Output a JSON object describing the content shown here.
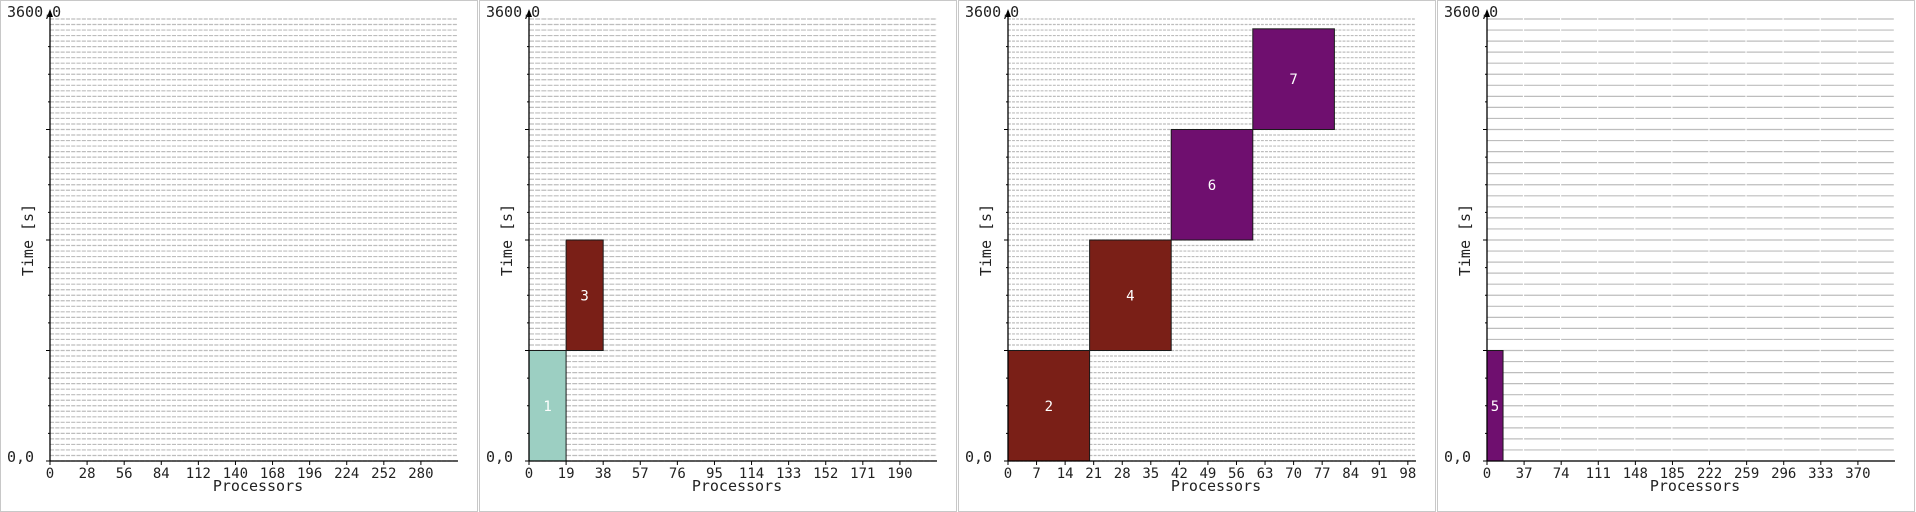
{
  "colors": {
    "grid_gray": "#bdbdbd",
    "job_teal": "#9ccfc2",
    "job_dark_red": "#7a1f17",
    "job_purple": "#6f0f6f",
    "axis": "#000000"
  },
  "chart_data": [
    {
      "type": "gantt",
      "xlabel": "Processors",
      "ylabel": "Time [s]",
      "ylim": [
        0,
        3600
      ],
      "y_top_label": "3600,0",
      "y_bottom_label": "0,0",
      "xlim": [
        0,
        308
      ],
      "x_ticks": [
        0,
        28,
        56,
        84,
        112,
        140,
        168,
        196,
        224,
        252,
        280
      ],
      "y_ticks": [
        900,
        1800,
        2700
      ],
      "grid_rows": 80,
      "grid_cols": 77,
      "jobs": []
    },
    {
      "type": "gantt",
      "xlabel": "Processors",
      "ylabel": "Time [s]",
      "ylim": [
        0,
        3600
      ],
      "y_top_label": "3600,0",
      "y_bottom_label": "0,0",
      "xlim": [
        0,
        209
      ],
      "x_ticks": [
        0,
        19,
        38,
        57,
        76,
        95,
        114,
        133,
        152,
        171,
        190
      ],
      "y_ticks": [
        900,
        1800,
        2700
      ],
      "grid_rows": 80,
      "grid_cols": 66,
      "jobs": [
        {
          "id": "1",
          "x0": 0,
          "x1": 19,
          "t0": 0,
          "t1": 900,
          "color": "#9ccfc2"
        },
        {
          "id": "3",
          "x0": 19,
          "x1": 38,
          "t0": 900,
          "t1": 1800,
          "color": "#7a1f17"
        }
      ]
    },
    {
      "type": "gantt",
      "xlabel": "Processors",
      "ylabel": "Time [s]",
      "ylim": [
        0,
        3600
      ],
      "y_top_label": "3600,0",
      "y_bottom_label": "0,0",
      "xlim": [
        0,
        100
      ],
      "x_ticks": [
        0,
        7,
        14,
        21,
        28,
        35,
        42,
        49,
        56,
        63,
        70,
        77,
        84,
        91,
        98
      ],
      "y_ticks": [
        900,
        1800,
        2700
      ],
      "grid_rows": 80,
      "grid_cols": 100,
      "jobs": [
        {
          "id": "2",
          "x0": 0,
          "x1": 20,
          "t0": 0,
          "t1": 900,
          "color": "#7a1f17"
        },
        {
          "id": "4",
          "x0": 20,
          "x1": 40,
          "t0": 900,
          "t1": 1800,
          "color": "#7a1f17"
        },
        {
          "id": "6",
          "x0": 40,
          "x1": 60,
          "t0": 1800,
          "t1": 2700,
          "color": "#6f0f6f"
        },
        {
          "id": "7",
          "x0": 60,
          "x1": 80,
          "t0": 2700,
          "t1": 3520,
          "color": "#6f0f6f"
        }
      ]
    },
    {
      "type": "gantt",
      "xlabel": "Processors",
      "ylabel": "Time [s]",
      "ylim": [
        0,
        3600
      ],
      "y_top_label": "3600,0",
      "y_bottom_label": "0,0",
      "xlim": [
        0,
        407
      ],
      "x_ticks": [
        0,
        37,
        74,
        111,
        148,
        185,
        222,
        259,
        296,
        333,
        370
      ],
      "y_ticks": [
        900,
        1800,
        2700
      ],
      "grid_rows": 40,
      "grid_cols": 11,
      "jobs": [
        {
          "id": "5",
          "x0": 0,
          "x1": 16,
          "t0": 0,
          "t1": 900,
          "color": "#6f0f6f"
        }
      ]
    }
  ]
}
